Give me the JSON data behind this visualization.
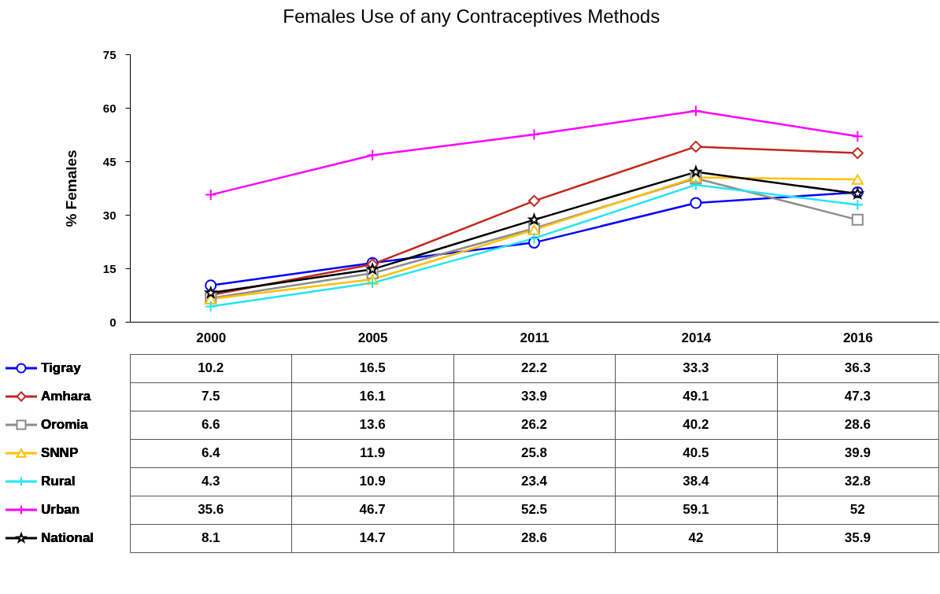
{
  "chart_data": {
    "type": "line",
    "title": "Females Use of any Contraceptives Methods",
    "ylabel": "% Females",
    "categories": [
      "2000",
      "2005",
      "2011",
      "2014",
      "2016"
    ],
    "ylim": [
      0,
      75
    ],
    "yticks": [
      0,
      15,
      30,
      45,
      60,
      75
    ],
    "grid": false,
    "legend": "bottom left",
    "data_labels": true,
    "series": [
      {
        "name": "Tigray",
        "color": "#0000ff",
        "marker": "circle",
        "values": [
          10.2,
          16.5,
          22.2,
          33.3,
          36.3
        ]
      },
      {
        "name": "Amhara",
        "color": "#c0281e",
        "marker": "diamond",
        "values": [
          7.5,
          16.1,
          33.9,
          49.1,
          47.3
        ]
      },
      {
        "name": "Oromia",
        "color": "#8c8c8c",
        "marker": "square",
        "values": [
          6.6,
          13.6,
          26.2,
          40.2,
          28.6
        ]
      },
      {
        "name": "SNNP",
        "color": "#ffc000",
        "marker": "triangle",
        "values": [
          6.4,
          11.9,
          25.8,
          40.5,
          39.9
        ]
      },
      {
        "name": "Rural",
        "color": "#22e5f0",
        "marker": "cross",
        "values": [
          4.3,
          10.9,
          23.4,
          38.4,
          32.8
        ]
      },
      {
        "name": "Urban",
        "color": "#ff00ff",
        "marker": "cross",
        "values": [
          35.6,
          46.7,
          52.5,
          59.1,
          52
        ]
      },
      {
        "name": "National",
        "color": "#000000",
        "marker": "star",
        "values": [
          8.1,
          14.7,
          28.6,
          42,
          35.9
        ]
      }
    ]
  }
}
